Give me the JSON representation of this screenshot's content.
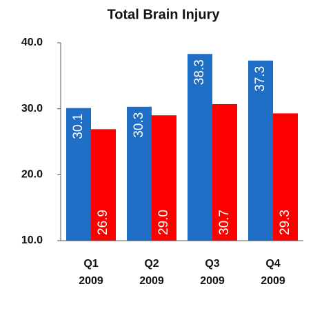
{
  "chart_data": {
    "type": "bar",
    "title": "Total Brain Injury",
    "categories": [
      [
        "Q1",
        "2009"
      ],
      [
        "Q2",
        "2009"
      ],
      [
        "Q3",
        "2009"
      ],
      [
        "Q4",
        "2009"
      ]
    ],
    "series": [
      {
        "color": "#1f6fc6",
        "values": [
          30.1,
          30.3,
          38.3,
          37.3
        ],
        "value_labels": [
          "30.1",
          "30.3",
          "38.3",
          "37.3"
        ]
      },
      {
        "color": "#ff0000",
        "values": [
          26.9,
          29.0,
          30.7,
          29.3
        ],
        "value_labels": [
          "26.9",
          "29.0",
          "30.7",
          "29.3"
        ]
      }
    ],
    "ylim": [
      10,
      40
    ],
    "yticks": [
      {
        "value": 10,
        "label": "10.0"
      },
      {
        "value": 20,
        "label": "20.0"
      },
      {
        "value": 30,
        "label": "30.0"
      },
      {
        "value": 40,
        "label": "40.0"
      }
    ]
  }
}
